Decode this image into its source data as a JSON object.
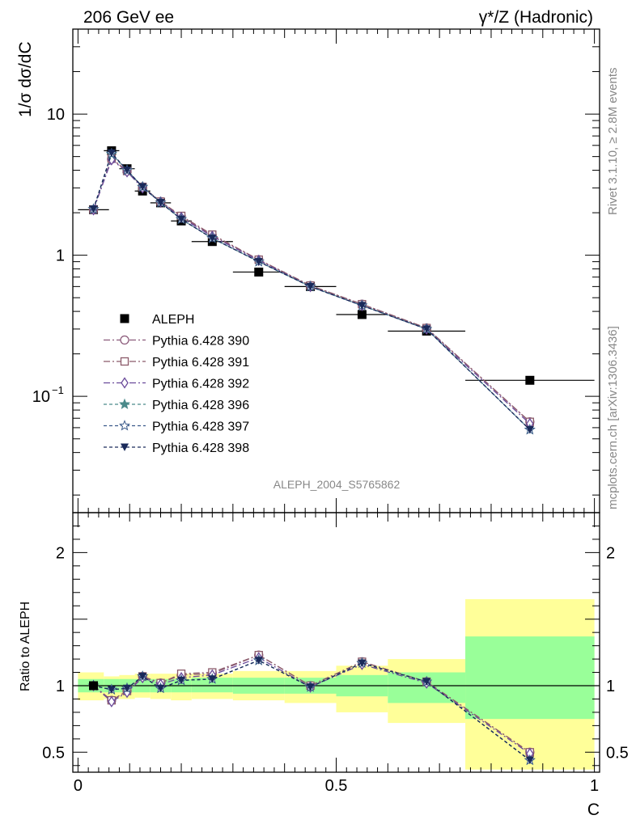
{
  "header": {
    "left": "206 GeV ee",
    "right": "γ*/Z (Hadronic)"
  },
  "side_text": {
    "top": "Rivet 3.1.10, ≥ 2.8M events",
    "bottom": "mcplots.cern.ch [arXiv:1306.3436]"
  },
  "watermark": "ALEPH_2004_S5765862",
  "colors": {
    "band_inner": "#99ff99",
    "band_outer": "#ffff99",
    "data": "#000000"
  },
  "chart_data": [
    {
      "type": "line",
      "panel": "main",
      "ylabel": "1/σ  dσ/dC",
      "yscale": "log",
      "ylim": [
        0.015,
        40
      ],
      "xlim": [
        -0.01,
        1.01
      ],
      "yticks": [
        {
          "value": 10,
          "label": "10"
        },
        {
          "value": 1,
          "label": "1"
        },
        {
          "value": 0.1,
          "label": "10",
          "exp": "−1"
        }
      ],
      "legend_position": "left-middle",
      "legend": [
        {
          "label": "ALEPH",
          "marker": "square-filled",
          "color": "#000000"
        },
        {
          "label": "Pythia 6.428 390",
          "marker": "circle-open",
          "color": "#8b5a7a",
          "dash": "8,3,2,3"
        },
        {
          "label": "Pythia 6.428 391",
          "marker": "square-open",
          "color": "#8b5a6a",
          "dash": "8,3,2,3"
        },
        {
          "label": "Pythia 6.428 392",
          "marker": "diamond-open",
          "color": "#6a4a9a",
          "dash": "8,3,2,3"
        },
        {
          "label": "Pythia 6.428 396",
          "marker": "star-filled",
          "color": "#4a8a8a",
          "dash": "4,3"
        },
        {
          "label": "Pythia 6.428 397",
          "marker": "star-open",
          "color": "#3a5a8a",
          "dash": "4,3"
        },
        {
          "label": "Pythia 6.428 398",
          "marker": "triangle-down-filled",
          "color": "#1a2a5a",
          "dash": "4,3"
        }
      ],
      "data": {
        "name": "ALEPH",
        "x": [
          0.03,
          0.065,
          0.095,
          0.125,
          0.16,
          0.2,
          0.26,
          0.35,
          0.45,
          0.55,
          0.675,
          0.875
        ],
        "y": [
          2.1,
          5.5,
          4.1,
          2.85,
          2.35,
          1.75,
          1.25,
          0.76,
          0.6,
          0.38,
          0.29,
          0.13
        ],
        "xerr": [
          0.03,
          0.015,
          0.015,
          0.015,
          0.02,
          0.02,
          0.04,
          0.05,
          0.05,
          0.05,
          0.075,
          0.125
        ]
      },
      "series": [
        {
          "name": "Pythia 6.428 390",
          "y": [
            2.1,
            4.8,
            3.95,
            3.05,
            2.4,
            1.88,
            1.38,
            0.93,
            0.61,
            0.45,
            0.305,
            0.066
          ]
        },
        {
          "name": "Pythia 6.428 391",
          "y": [
            2.1,
            4.85,
            3.95,
            3.05,
            2.4,
            1.9,
            1.4,
            0.93,
            0.61,
            0.45,
            0.305,
            0.066
          ]
        },
        {
          "name": "Pythia 6.428 392",
          "y": [
            2.1,
            4.75,
            3.9,
            3.0,
            2.38,
            1.85,
            1.36,
            0.92,
            0.6,
            0.44,
            0.3,
            0.064
          ]
        },
        {
          "name": "Pythia 6.428 396",
          "y": [
            2.12,
            5.2,
            4.0,
            3.05,
            2.36,
            1.8,
            1.32,
            0.9,
            0.6,
            0.44,
            0.3,
            0.058
          ]
        },
        {
          "name": "Pythia 6.428 397",
          "y": [
            2.12,
            5.25,
            4.0,
            3.05,
            2.36,
            1.8,
            1.32,
            0.9,
            0.6,
            0.44,
            0.3,
            0.058
          ]
        },
        {
          "name": "Pythia 6.428 398",
          "y": [
            2.12,
            5.3,
            4.0,
            3.05,
            2.36,
            1.8,
            1.32,
            0.9,
            0.6,
            0.44,
            0.3,
            0.058
          ]
        }
      ]
    },
    {
      "type": "line",
      "panel": "ratio",
      "ylabel": "Ratio to ALEPH",
      "xlabel": "C",
      "ylim": [
        0.35,
        2.3
      ],
      "xlim": [
        -0.01,
        1.01
      ],
      "yticks": [
        {
          "value": 2,
          "label": "2"
        },
        {
          "value": 1,
          "label": "1"
        },
        {
          "value": 0.5,
          "label": "0.5"
        }
      ],
      "xticks": [
        {
          "value": 0,
          "label": "0"
        },
        {
          "value": 0.5,
          "label": "0.5"
        },
        {
          "value": 1,
          "label": "1"
        }
      ],
      "bands": [
        {
          "x0": 0.0,
          "x1": 0.05,
          "inner": [
            0.95,
            1.05
          ],
          "outer": [
            0.89,
            1.1
          ]
        },
        {
          "x0": 0.05,
          "x1": 0.08,
          "inner": [
            0.95,
            1.05
          ],
          "outer": [
            0.9,
            1.07
          ]
        },
        {
          "x0": 0.08,
          "x1": 0.11,
          "inner": [
            0.95,
            1.05
          ],
          "outer": [
            0.9,
            1.08
          ]
        },
        {
          "x0": 0.11,
          "x1": 0.14,
          "inner": [
            0.95,
            1.05
          ],
          "outer": [
            0.91,
            1.09
          ]
        },
        {
          "x0": 0.14,
          "x1": 0.18,
          "inner": [
            0.95,
            1.05
          ],
          "outer": [
            0.9,
            1.09
          ]
        },
        {
          "x0": 0.18,
          "x1": 0.22,
          "inner": [
            0.95,
            1.05
          ],
          "outer": [
            0.89,
            1.09
          ]
        },
        {
          "x0": 0.22,
          "x1": 0.3,
          "inner": [
            0.95,
            1.06
          ],
          "outer": [
            0.9,
            1.09
          ]
        },
        {
          "x0": 0.3,
          "x1": 0.4,
          "inner": [
            0.94,
            1.06
          ],
          "outer": [
            0.89,
            1.11
          ]
        },
        {
          "x0": 0.4,
          "x1": 0.5,
          "inner": [
            0.94,
            1.06
          ],
          "outer": [
            0.87,
            1.11
          ]
        },
        {
          "x0": 0.5,
          "x1": 0.6,
          "inner": [
            0.92,
            1.08
          ],
          "outer": [
            0.8,
            1.15
          ]
        },
        {
          "x0": 0.6,
          "x1": 0.75,
          "inner": [
            0.87,
            1.1
          ],
          "outer": [
            0.72,
            1.2
          ]
        },
        {
          "x0": 0.75,
          "x1": 1.0,
          "inner": [
            0.75,
            1.37
          ],
          "outer": [
            0.37,
            1.65
          ]
        }
      ],
      "series": [
        {
          "name": "Pythia 6.428 390",
          "y": [
            1.0,
            0.89,
            0.96,
            1.07,
            1.02,
            1.08,
            1.09,
            1.23,
            1.0,
            1.18,
            1.03,
            0.5
          ]
        },
        {
          "name": "Pythia 6.428 391",
          "y": [
            1.0,
            0.89,
            0.96,
            1.07,
            1.02,
            1.09,
            1.1,
            1.23,
            1.0,
            1.18,
            1.03,
            0.5
          ]
        },
        {
          "name": "Pythia 6.428 392",
          "y": [
            1.0,
            0.88,
            0.95,
            1.06,
            1.01,
            1.06,
            1.08,
            1.21,
            0.99,
            1.16,
            1.02,
            0.49
          ]
        },
        {
          "name": "Pythia 6.428 396",
          "y": [
            1.0,
            0.97,
            0.98,
            1.07,
            0.98,
            1.04,
            1.05,
            1.19,
            0.99,
            1.17,
            1.03,
            0.44
          ]
        },
        {
          "name": "Pythia 6.428 397",
          "y": [
            1.0,
            0.97,
            0.98,
            1.07,
            0.98,
            1.04,
            1.05,
            1.19,
            0.99,
            1.17,
            1.03,
            0.44
          ]
        },
        {
          "name": "Pythia 6.428 398",
          "y": [
            1.0,
            0.97,
            0.98,
            1.07,
            0.98,
            1.04,
            1.05,
            1.19,
            0.99,
            1.17,
            1.03,
            0.44
          ]
        }
      ]
    }
  ]
}
